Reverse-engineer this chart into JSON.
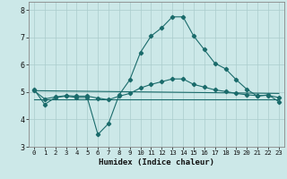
{
  "xlabel": "Humidex (Indice chaleur)",
  "background_color": "#cce8e8",
  "grid_color": "#aacccc",
  "line_color": "#1a6b6b",
  "xlim": [
    -0.5,
    23.5
  ],
  "ylim": [
    3.0,
    8.3
  ],
  "yticks": [
    3,
    4,
    5,
    6,
    7,
    8
  ],
  "xticks": [
    0,
    1,
    2,
    3,
    4,
    5,
    6,
    7,
    8,
    9,
    10,
    11,
    12,
    13,
    14,
    15,
    16,
    17,
    18,
    19,
    20,
    21,
    22,
    23
  ],
  "line1_x": [
    0,
    1,
    2,
    3,
    4,
    5,
    6,
    7,
    8,
    9,
    10,
    11,
    12,
    13,
    14,
    15,
    16,
    17,
    18,
    19,
    20,
    21,
    22,
    23
  ],
  "line1_y": [
    5.1,
    4.55,
    4.8,
    4.85,
    4.8,
    4.8,
    3.45,
    3.85,
    4.9,
    5.45,
    6.45,
    7.05,
    7.35,
    7.75,
    7.75,
    7.05,
    6.55,
    6.05,
    5.85,
    5.45,
    5.1,
    4.85,
    4.9,
    4.65
  ],
  "line2_x": [
    0,
    1,
    2,
    3,
    4,
    5,
    6,
    7,
    8,
    9,
    10,
    11,
    12,
    13,
    14,
    15,
    16,
    17,
    18,
    19,
    20,
    21,
    22,
    23
  ],
  "line2_y": [
    4.72,
    4.72,
    4.72,
    4.72,
    4.72,
    4.72,
    4.72,
    4.72,
    4.72,
    4.72,
    4.72,
    4.72,
    4.72,
    4.72,
    4.72,
    4.72,
    4.72,
    4.72,
    4.72,
    4.72,
    4.72,
    4.72,
    4.72,
    4.72
  ],
  "line3_x": [
    0,
    1,
    2,
    3,
    4,
    5,
    6,
    7,
    8,
    9,
    10,
    11,
    12,
    13,
    14,
    15,
    16,
    17,
    18,
    19,
    20,
    21,
    22,
    23
  ],
  "line3_y": [
    5.05,
    4.75,
    4.82,
    4.87,
    4.85,
    4.85,
    4.78,
    4.72,
    4.85,
    4.95,
    5.15,
    5.28,
    5.38,
    5.48,
    5.48,
    5.28,
    5.18,
    5.08,
    5.02,
    4.95,
    4.9,
    4.87,
    4.88,
    4.8
  ],
  "line4_x": [
    0,
    23
  ],
  "line4_y": [
    5.05,
    4.95
  ]
}
